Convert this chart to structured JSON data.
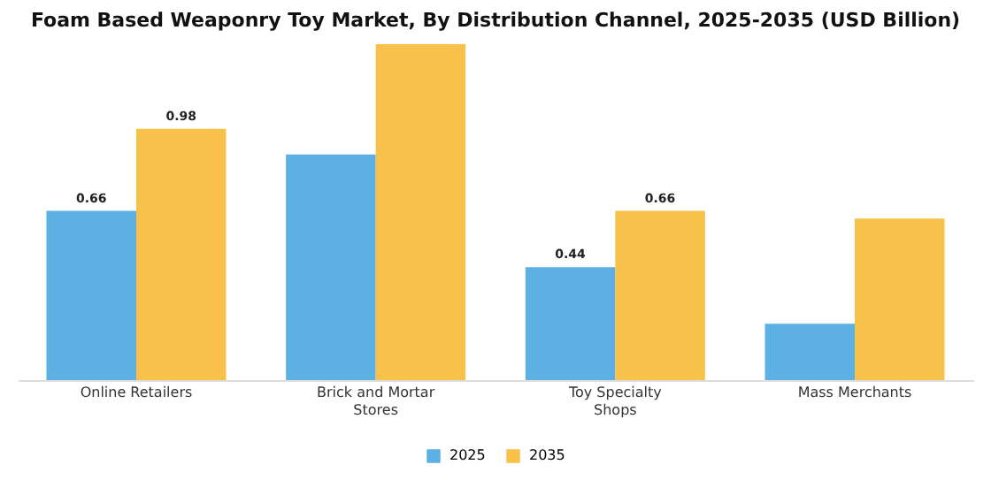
{
  "chart_data": {
    "type": "bar",
    "title": "Foam Based Weaponry Toy Market, By Distribution Channel, 2025-2035 (USD Billion)",
    "categories": [
      "Online Retailers",
      "Brick and Mortar Stores",
      "Toy Specialty Shops",
      "Mass Merchants"
    ],
    "series": [
      {
        "name": "2025",
        "color": "#5db0e3",
        "values": [
          0.66,
          0.88,
          0.44,
          0.22
        ],
        "value_labels": [
          "0.66",
          null,
          "0.44",
          null
        ]
      },
      {
        "name": "2035",
        "color": "#f8c24a",
        "values": [
          0.98,
          1.31,
          0.66,
          0.63
        ],
        "value_labels": [
          "0.98",
          null,
          "0.66",
          null
        ]
      }
    ],
    "tick_labels": "x",
    "legend": "bottom"
  }
}
